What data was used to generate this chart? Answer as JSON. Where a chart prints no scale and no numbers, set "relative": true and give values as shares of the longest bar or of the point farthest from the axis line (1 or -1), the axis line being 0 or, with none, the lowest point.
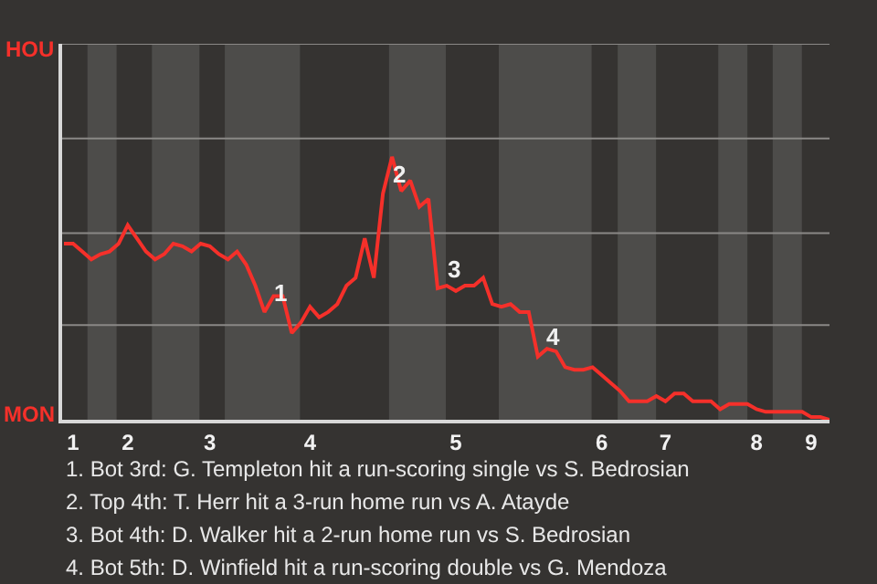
{
  "chart_data": {
    "type": "line",
    "relative": true,
    "categories": [
      null,
      "1",
      null,
      null,
      null,
      null,
      null,
      "2",
      null,
      null,
      null,
      null,
      null,
      null,
      null,
      null,
      "3",
      null,
      null,
      null,
      null,
      null,
      null,
      null,
      null,
      null,
      null,
      "4",
      null,
      null,
      null,
      null,
      null,
      null,
      null,
      null,
      null,
      null,
      null,
      null,
      null,
      null,
      null,
      "5",
      null,
      null,
      null,
      null,
      null,
      null,
      null,
      null,
      null,
      null,
      null,
      null,
      null,
      null,
      null,
      "6",
      null,
      null,
      null,
      null,
      null,
      null,
      "7",
      null,
      null,
      null,
      null,
      null,
      null,
      null,
      null,
      null,
      "8",
      null,
      null,
      null,
      null,
      null,
      "9",
      null,
      null
    ],
    "series": [
      {
        "color": "#f5302a",
        "values": [
          0.67,
          0.67,
          0.64,
          0.61,
          0.63,
          0.64,
          0.67,
          0.74,
          0.69,
          0.64,
          0.61,
          0.63,
          0.67,
          0.66,
          0.64,
          0.67,
          0.66,
          0.63,
          0.61,
          0.64,
          0.59,
          0.51,
          0.41,
          0.47,
          0.47,
          0.33,
          0.37,
          0.43,
          0.39,
          0.41,
          0.44,
          0.51,
          0.54,
          0.69,
          0.54,
          0.86,
          1,
          0.87,
          0.91,
          0.81,
          0.84,
          0.5,
          0.51,
          0.49,
          0.51,
          0.51,
          0.54,
          0.44,
          0.43,
          0.44,
          0.41,
          0.41,
          0.24,
          0.27,
          0.26,
          0.2,
          0.19,
          0.19,
          0.2,
          0.17,
          0.14,
          0.11,
          0.07,
          0.07,
          0.07,
          0.09,
          0.07,
          0.1,
          0.1,
          0.07,
          0.07,
          0.07,
          0.04,
          0.06,
          0.06,
          0.06,
          0.04,
          0.03,
          0.03,
          0.03,
          0.03,
          0.03,
          0.01,
          0.01,
          0
        ]
      }
    ],
    "marker": "none",
    "line_style": "solid",
    "ref_lines": [
      {
        "axis": "y",
        "value": 0.36,
        "color": "#8a8886"
      },
      {
        "axis": "y",
        "value": 0.71,
        "color": "#8a8886"
      },
      {
        "axis": "y",
        "value": 1.07,
        "color": "#8a8886"
      },
      {
        "axis": "y",
        "value": 1.43,
        "color": "#8a8886"
      }
    ],
    "annotations": [
      {
        "text": "1",
        "y": 0.41
      },
      {
        "text": "2",
        "y": 0.86
      },
      {
        "text": "3",
        "y": 0.5
      },
      {
        "text": "4",
        "y": 0.24
      },
      "HOU",
      "MON",
      "1. Bot 3rd: G. Templeton hit a run-scoring single vs S. Bedrosian",
      "2. Top 4th: T. Herr hit a 3-run home run vs A. Atayde",
      "3. Bot 4th: D. Walker hit a 2-run home run vs S. Bedrosian",
      "4. Bot 5th: D. Winfield hit a run-scoring double vs G. Mendoza"
    ]
  }
}
